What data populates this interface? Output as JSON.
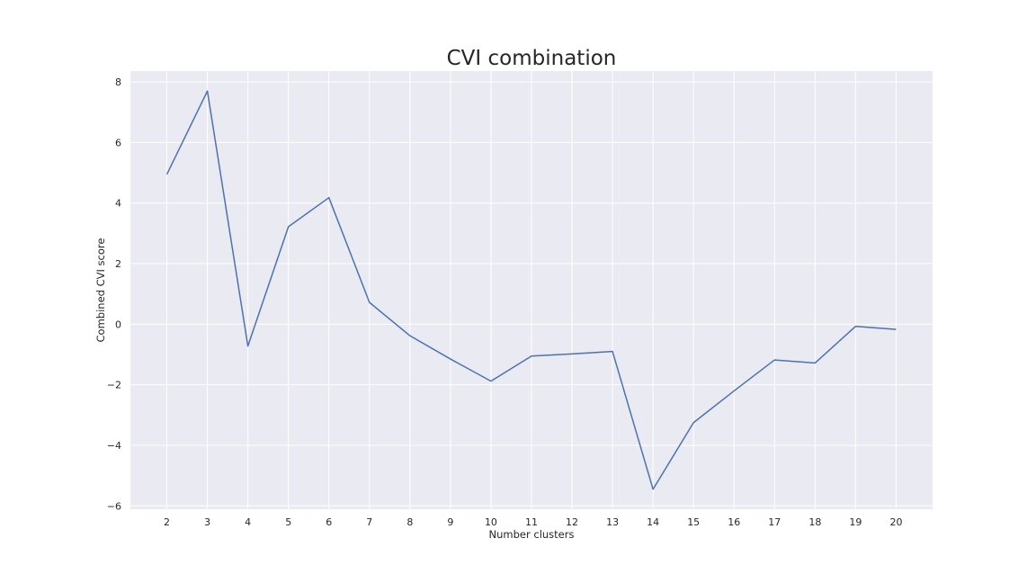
{
  "chart_data": {
    "type": "line",
    "title": "CVI combination",
    "xlabel": "Number clusters",
    "ylabel": "Combined CVI score",
    "x": [
      2,
      3,
      4,
      5,
      6,
      7,
      8,
      9,
      10,
      11,
      12,
      13,
      14,
      15,
      16,
      17,
      18,
      19,
      20
    ],
    "series": [
      {
        "values": [
          4.95,
          7.7,
          -0.72,
          3.22,
          4.18,
          0.72,
          -0.38,
          -1.15,
          -1.88,
          -1.05,
          -0.98,
          -0.9,
          -5.45,
          -3.25,
          -2.2,
          -1.18,
          -1.28,
          -0.07,
          -0.17
        ],
        "color": "#4c72b0"
      }
    ],
    "xticks": [
      "2",
      "3",
      "4",
      "5",
      "6",
      "7",
      "8",
      "9",
      "10",
      "11",
      "12",
      "13",
      "14",
      "15",
      "16",
      "17",
      "18",
      "19",
      "20"
    ],
    "yticks": [
      "−6",
      "−4",
      "−2",
      "0",
      "2",
      "4",
      "6",
      "8"
    ],
    "ytick_values": [
      -6,
      -4,
      -2,
      0,
      2,
      4,
      6,
      8
    ],
    "xlim": [
      1.1,
      20.9
    ],
    "ylim": [
      -6.11,
      8.36
    ],
    "grid": true,
    "background": "#eaeaf2",
    "grid_color": "#ffffff"
  }
}
